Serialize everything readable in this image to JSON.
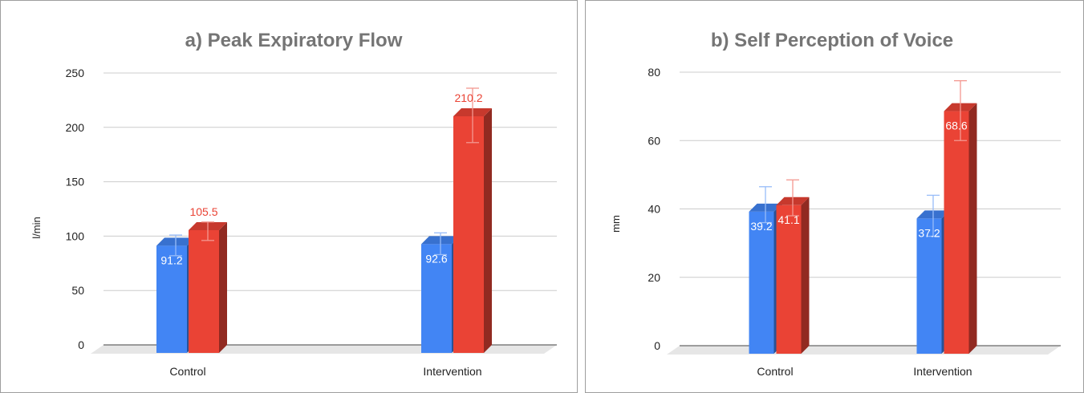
{
  "colors": {
    "series_blue": "#4285f4",
    "series_red": "#ea4335",
    "title": "#757575",
    "axis_text": "#222222",
    "grid": "#cccccc",
    "floor": "#e6e6e6"
  },
  "chart_data": [
    {
      "type": "bar",
      "title": "a) Peak Expiratory Flow",
      "xlabel": "",
      "ylabel": "l/min",
      "categories": [
        "Control",
        "Intervention"
      ],
      "ylim": [
        0,
        250
      ],
      "yticks": [
        0,
        50,
        100,
        150,
        200,
        250
      ],
      "grid": true,
      "style": "3d",
      "series": [
        {
          "color": "#4285f4",
          "values": [
            91.2,
            92.6
          ],
          "labels": [
            "91.2",
            "92.6"
          ],
          "error_low": [
            82,
            83
          ],
          "error_high": [
            101,
            103
          ]
        },
        {
          "color": "#ea4335",
          "values": [
            105.5,
            210.2
          ],
          "labels": [
            "105.5",
            "210.2"
          ],
          "error_low": [
            96,
            186
          ],
          "error_high": [
            113,
            236
          ]
        }
      ]
    },
    {
      "type": "bar",
      "title": "b) Self Perception of Voice",
      "xlabel": "",
      "ylabel": "mm",
      "categories": [
        "Control",
        "Intervention"
      ],
      "ylim": [
        0,
        80
      ],
      "yticks": [
        0,
        20,
        40,
        60,
        80
      ],
      "grid": true,
      "style": "3d",
      "series": [
        {
          "color": "#4285f4",
          "values": [
            39.2,
            37.2
          ],
          "labels": [
            "39.2",
            "37.2"
          ],
          "error_low": [
            36,
            32
          ],
          "error_high": [
            46.5,
            44
          ]
        },
        {
          "color": "#ea4335",
          "values": [
            41.1,
            68.6
          ],
          "labels": [
            "41.1",
            "68.6"
          ],
          "error_low": [
            38,
            60
          ],
          "error_high": [
            48.5,
            77.5
          ]
        }
      ]
    }
  ]
}
